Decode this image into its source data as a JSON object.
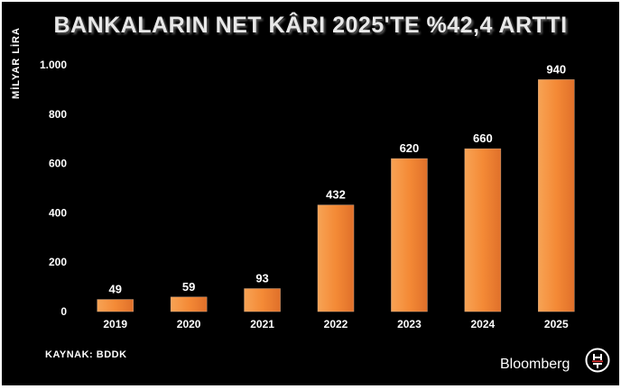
{
  "header": {
    "title": "BANKALARIN NET KÂRI 2025'TE %42,4 ARTTI"
  },
  "footer": {
    "source": "KAYNAK: BDDK",
    "brand": "Bloomberg"
  },
  "colors": {
    "background": "#000000",
    "bar": "#f28c3a",
    "text": "#ffffff"
  },
  "chart_data": {
    "type": "bar",
    "title": "BANKALARIN NET KÂRI 2025'TE %42,4 ARTTI",
    "ylabel": "MİLYAR LİRA",
    "xlabel": "",
    "categories": [
      "2019",
      "2020",
      "2021",
      "2022",
      "2023",
      "2024",
      "2025"
    ],
    "values": [
      49,
      59,
      93,
      432,
      620,
      660,
      940
    ],
    "data_labels": [
      "49",
      "59",
      "93",
      "432",
      "620",
      "660",
      "940"
    ],
    "ylim": [
      0,
      1000
    ],
    "yticks": [
      0,
      200,
      400,
      600,
      800,
      1000
    ],
    "ytick_labels": [
      "0",
      "200",
      "400",
      "600",
      "800",
      "1.000"
    ],
    "grid": false,
    "legend": "none"
  }
}
